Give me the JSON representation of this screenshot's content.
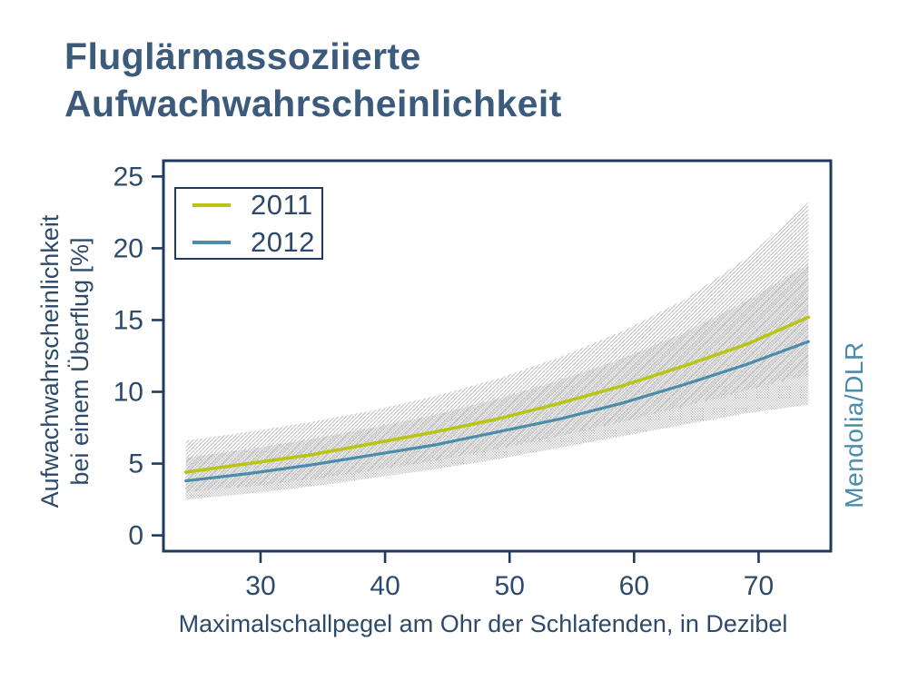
{
  "page": {
    "title_line1": "Fluglärmassoziierte",
    "title_line2": "Aufwachwahrscheinlichkeit",
    "credit": "Mendolia/DLR"
  },
  "colors": {
    "title": "#3b5a7c",
    "axis_text": "#2d4a6b",
    "axis_line": "#1e3a5f",
    "credit": "#4a8cac",
    "background": "#ffffff",
    "band_hatch": "#a8a8a8",
    "band_checker": "#c6c6c6"
  },
  "chart_data": {
    "type": "line",
    "title": "Fluglärmassoziierte Aufwachwahrscheinlichkeit",
    "xlabel": "Maximalschallpegel am Ohr der Schlafenden, in Dezibel",
    "ylabel_line1": "Aufwachwahrscheinlichkeit",
    "ylabel_line2": "bei einem Überflug [%]",
    "xlim": [
      22.2,
      75.8
    ],
    "ylim": [
      -1.1,
      26.1
    ],
    "x_ticks": [
      30,
      40,
      50,
      60,
      70
    ],
    "y_ticks": [
      0,
      5,
      10,
      15,
      20,
      25
    ],
    "grid": false,
    "legend_position": "top-left",
    "x": [
      24,
      29,
      34,
      39,
      44,
      49,
      54,
      59,
      64,
      69,
      74
    ],
    "series": [
      {
        "name": "2011",
        "color": "#b9c512",
        "values": [
          4.4,
          5.0,
          5.6,
          6.4,
          7.2,
          8.1,
          9.2,
          10.4,
          11.8,
          13.3,
          15.2
        ],
        "ci_upper": [
          6.6,
          7.2,
          7.9,
          8.7,
          9.7,
          10.9,
          12.4,
          14.2,
          16.4,
          19.3,
          23.2
        ],
        "ci_lower": [
          3.0,
          3.4,
          3.9,
          4.5,
          5.2,
          6.0,
          6.9,
          7.9,
          9.0,
          10.1,
          11.2
        ]
      },
      {
        "name": "2012",
        "color": "#4a8cac",
        "values": [
          3.8,
          4.3,
          4.9,
          5.6,
          6.3,
          7.2,
          8.1,
          9.2,
          10.5,
          11.9,
          13.5
        ],
        "ci_upper": [
          5.4,
          6.0,
          6.7,
          7.5,
          8.4,
          9.5,
          10.8,
          12.3,
          14.1,
          16.3,
          18.9
        ],
        "ci_lower": [
          2.5,
          2.9,
          3.4,
          4.0,
          4.6,
          5.3,
          6.1,
          6.9,
          7.7,
          8.5,
          9.1
        ]
      }
    ]
  }
}
